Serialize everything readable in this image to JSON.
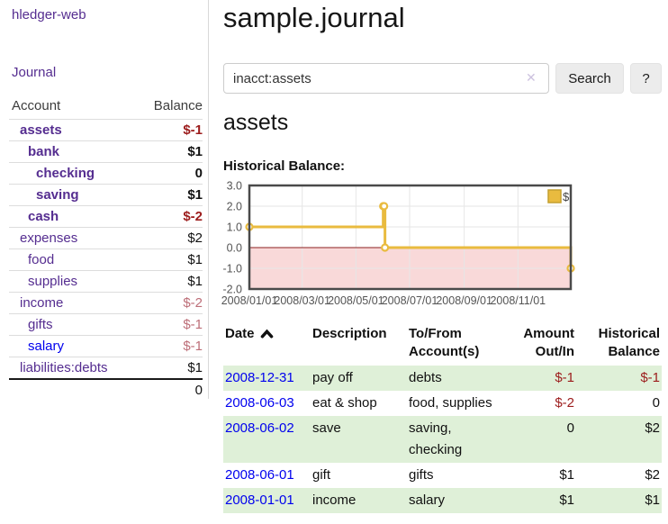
{
  "app": {
    "brand": "hledger-web",
    "journal_link": "Journal"
  },
  "icons": {
    "clear_search": "✕",
    "sort_asc": "chevron-up"
  },
  "colors": {
    "link_purple": "#552d90",
    "link_blue": "#0000ee",
    "negative_strong": "#9c1c1c",
    "negative_muted": "#bd6e78",
    "row_green": "#dff0d8",
    "series_yellow": "#e9bb3f",
    "negative_region": "#f9d9d9",
    "zero_line": "#8b2020",
    "chart_border": "#4a4a4a",
    "axis_text": "#545454"
  },
  "sidebar": {
    "header": {
      "account": "Account",
      "balance": "Balance"
    },
    "rows": [
      {
        "name": "assets",
        "depth": 1,
        "bold": true,
        "blue": false,
        "balance": "$-1",
        "balance_class": "sneg"
      },
      {
        "name": "bank",
        "depth": 2,
        "bold": true,
        "blue": false,
        "balance": "$1",
        "balance_class": ""
      },
      {
        "name": "checking",
        "depth": 3,
        "bold": true,
        "blue": false,
        "balance": "0",
        "balance_class": ""
      },
      {
        "name": "saving",
        "depth": 3,
        "bold": true,
        "blue": false,
        "balance": "$1",
        "balance_class": ""
      },
      {
        "name": "cash",
        "depth": 2,
        "bold": true,
        "blue": false,
        "balance": "$-2",
        "balance_class": "sneg"
      },
      {
        "name": "expenses",
        "depth": 1,
        "bold": false,
        "blue": false,
        "balance": "$2",
        "balance_class": ""
      },
      {
        "name": "food",
        "depth": 2,
        "bold": false,
        "blue": false,
        "balance": "$1",
        "balance_class": ""
      },
      {
        "name": "supplies",
        "depth": 2,
        "bold": false,
        "blue": false,
        "balance": "$1",
        "balance_class": ""
      },
      {
        "name": "income",
        "depth": 1,
        "bold": false,
        "blue": false,
        "balance": "$-2",
        "balance_class": "mneg"
      },
      {
        "name": "gifts",
        "depth": 2,
        "bold": false,
        "blue": false,
        "balance": "$-1",
        "balance_class": "mneg"
      },
      {
        "name": "salary",
        "depth": 2,
        "bold": false,
        "blue": true,
        "balance": "$-1",
        "balance_class": "mneg"
      },
      {
        "name": "liabilities:debts",
        "depth": 1,
        "bold": false,
        "blue": false,
        "balance": "$1",
        "balance_class": ""
      }
    ],
    "total": "0"
  },
  "main": {
    "title": "sample.journal"
  },
  "search": {
    "value": "inacct:assets",
    "button_label": "Search",
    "help_label": "?"
  },
  "account_page": {
    "heading": "assets",
    "chart_label": "Historical Balance:"
  },
  "chart_data": {
    "type": "line",
    "step": true,
    "title": "Historical Balance",
    "legend": [
      {
        "label": "$",
        "color": "#e9bb3f"
      }
    ],
    "legend_position": "top-right",
    "grid": true,
    "x_range": [
      "2008-01-01",
      "2008-12-31"
    ],
    "ylim": [
      -2,
      3
    ],
    "yticks": [
      3,
      2,
      1,
      0,
      -1,
      -2
    ],
    "ytick_labels": [
      "3.0",
      "2.0",
      "1.0",
      "0.0",
      "-1.0",
      "-2.0"
    ],
    "xticks": [
      "2008-01-01",
      "2008-03-01",
      "2008-05-01",
      "2008-07-01",
      "2008-09-01",
      "2008-11-01"
    ],
    "xtick_labels": [
      "2008/01/01",
      "2008/03/01",
      "2008/05/01",
      "2008/07/01",
      "2008/09/01",
      "2008/11/01"
    ],
    "series": [
      {
        "name": "$",
        "color": "#e9bb3f",
        "points": [
          [
            "2008-01-01",
            1
          ],
          [
            "2008-06-01",
            2
          ],
          [
            "2008-06-02",
            2
          ],
          [
            "2008-06-03",
            0
          ],
          [
            "2008-12-31",
            -1
          ]
        ]
      }
    ],
    "negative_region_fill": "#f9d9d9",
    "zero_line_color": "#8b2020"
  },
  "transactions": {
    "headers": [
      {
        "key": "date",
        "lines": [
          "Date"
        ],
        "align": "left",
        "sortable": true
      },
      {
        "key": "description",
        "lines": [
          "Description"
        ],
        "align": "left",
        "sortable": false
      },
      {
        "key": "accounts",
        "lines": [
          "To/From",
          "Account(s)"
        ],
        "align": "left",
        "sortable": false
      },
      {
        "key": "amount",
        "lines": [
          "Amount",
          "Out/In"
        ],
        "align": "right",
        "sortable": false
      },
      {
        "key": "balance",
        "lines": [
          "Historical",
          "Balance"
        ],
        "align": "right",
        "sortable": false
      }
    ],
    "rows": [
      {
        "date": "2008-12-31",
        "description": "pay off",
        "accounts": [
          "debts"
        ],
        "amount": "$-1",
        "amount_negative": true,
        "balance": "$-1",
        "balance_negative": true
      },
      {
        "date": "2008-06-03",
        "description": "eat & shop",
        "accounts": [
          "food, supplies"
        ],
        "amount": "$-2",
        "amount_negative": true,
        "balance": "0",
        "balance_negative": false
      },
      {
        "date": "2008-06-02",
        "description": "save",
        "accounts": [
          "saving,",
          "checking"
        ],
        "amount": "0",
        "amount_negative": false,
        "balance": "$2",
        "balance_negative": false
      },
      {
        "date": "2008-06-01",
        "description": "gift",
        "accounts": [
          "gifts"
        ],
        "amount": "$1",
        "amount_negative": false,
        "balance": "$2",
        "balance_negative": false
      },
      {
        "date": "2008-01-01",
        "description": "income",
        "accounts": [
          "salary"
        ],
        "amount": "$1",
        "amount_negative": false,
        "balance": "$1",
        "balance_negative": false
      }
    ]
  }
}
